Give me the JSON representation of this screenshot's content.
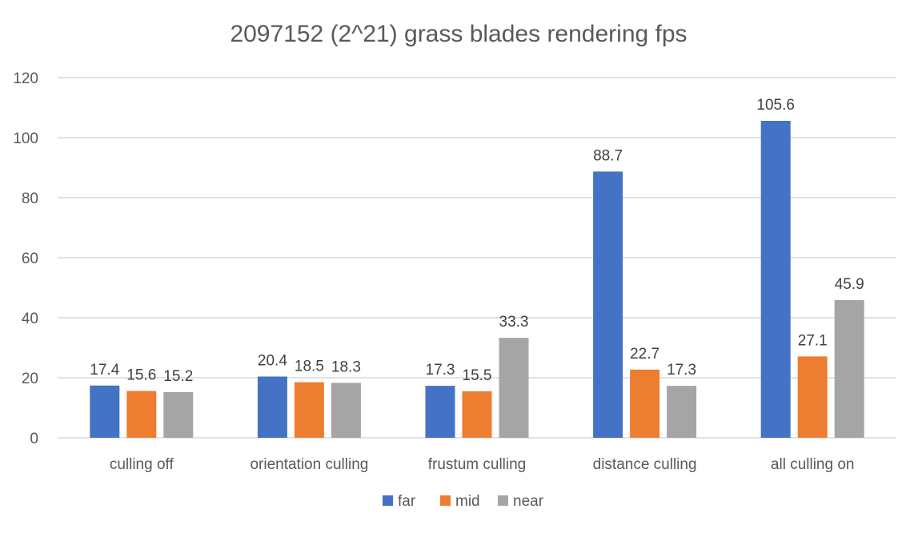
{
  "chart_data": {
    "type": "bar",
    "title": "2097152 (2^21) grass blades rendering fps",
    "xlabel": "",
    "ylabel": "",
    "categories": [
      "culling off",
      "orientation culling",
      "frustum culling",
      "distance culling",
      "all culling on"
    ],
    "series": [
      {
        "name": "far",
        "color": "#4472c4",
        "values": [
          17.4,
          20.4,
          17.3,
          88.7,
          105.6
        ]
      },
      {
        "name": "mid",
        "color": "#ed7d31",
        "values": [
          15.6,
          18.5,
          15.5,
          22.7,
          27.1
        ]
      },
      {
        "name": "near",
        "color": "#a5a5a5",
        "values": [
          15.2,
          18.3,
          33.3,
          17.3,
          45.9
        ]
      }
    ],
    "ylim": [
      0,
      120
    ],
    "yticks": [
      0,
      20,
      40,
      60,
      80,
      100,
      120
    ],
    "grid": true,
    "legend": "bottom",
    "data_labels": true
  }
}
